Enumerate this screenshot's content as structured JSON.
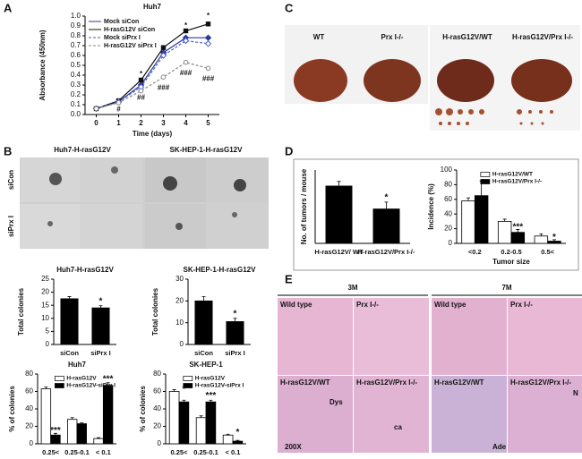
{
  "panel_labels": [
    "A",
    "B",
    "C",
    "D",
    "E"
  ],
  "panel_b": {
    "headers": [
      "Huh7-H-rasG12V",
      "SK-HEP-1-H-rasG12V"
    ],
    "rows": [
      "siCon",
      "siPrx I"
    ]
  },
  "panel_c": {
    "labels": [
      "WT",
      "Prx I-/-",
      "H-rasG12V/WT",
      "H-rasG12V/Prx I-/-"
    ]
  },
  "panel_e": {
    "headers": [
      "3M",
      "7M"
    ],
    "tiles": [
      "Wild type",
      "Prx I-/-",
      "Wild type",
      "Prx I-/-",
      "H-rasG12V/WT",
      "H-rasG12V/Prx I-/-",
      "H-rasG12V/WT",
      "H-rasG12V/Prx I-/-"
    ],
    "notes": [
      "Dys",
      "200X",
      "ca",
      "Ade",
      "N"
    ]
  },
  "chart_data": [
    {
      "type": "line",
      "title": "Huh7",
      "xlabel": "Time (days)",
      "ylabel": "Absorbance (450nm)",
      "x": [
        0,
        1,
        2,
        3,
        4,
        5
      ],
      "xlim": [
        -0.5,
        5.5
      ],
      "xticks": [
        0,
        1,
        2,
        3,
        4,
        5
      ],
      "ylim": [
        0,
        1
      ],
      "yticks": [
        {
          "value": 0,
          "label": "0.0"
        },
        0.1,
        0.2,
        0.3,
        0.4,
        0.5,
        0.6,
        0.7,
        0.8,
        0.9,
        {
          "value": 1,
          "label": "1.0"
        }
      ],
      "series": [
        {
          "name": "Mock siCon",
          "color": "#2b3a9a",
          "dash": false,
          "marker": "diamond",
          "filled": true,
          "values": [
            0.06,
            0.13,
            0.3,
            0.63,
            0.78,
            0.78
          ]
        },
        {
          "name": "H-rasG12V siCon",
          "color": "#111111",
          "dash": false,
          "marker": "square",
          "filled": true,
          "values": [
            0.06,
            0.14,
            0.35,
            0.68,
            0.85,
            0.92
          ]
        },
        {
          "name": "Mock siPrx I",
          "color": "#4a5ad0",
          "dash": true,
          "marker": "diamond",
          "filled": false,
          "values": [
            0.06,
            0.13,
            0.28,
            0.6,
            0.75,
            0.72
          ]
        },
        {
          "name": "H-rasG12V siPrx I",
          "color": "#888888",
          "dash": true,
          "marker": "circle",
          "filled": false,
          "values": [
            0.06,
            0.12,
            0.24,
            0.38,
            0.53,
            0.47
          ]
        }
      ],
      "annotations": [
        {
          "text": "*",
          "x": 2,
          "y": 0.41
        },
        {
          "text": "*",
          "x": 4,
          "y": 0.9
        },
        {
          "text": "*",
          "x": 5,
          "y": 1.0
        },
        {
          "text": "#",
          "x": 1,
          "y": 0.05
        },
        {
          "text": "##",
          "x": 2,
          "y": 0.17
        },
        {
          "text": "###",
          "x": 3,
          "y": 0.27
        },
        {
          "text": "###",
          "x": 4,
          "y": 0.42
        },
        {
          "text": "###",
          "x": 5,
          "y": 0.36
        }
      ]
    },
    {
      "type": "bar",
      "title": "Huh7-H-rasG12V",
      "ylabel": "Total colonies",
      "categories": [
        "siCon",
        "siPrx I"
      ],
      "values": [
        17.5,
        14
      ],
      "errors": [
        0.8,
        0.8
      ],
      "color": "#000000",
      "ylim": [
        0,
        25
      ],
      "yticks": [
        0,
        5,
        10,
        15,
        20,
        25
      ],
      "annotations": [
        {
          "text": "*",
          "x": "siPrx I",
          "y": 16.5
        }
      ]
    },
    {
      "type": "bar",
      "title": "SK-HEP-1-H-rasG12V",
      "ylabel": "Total colonies",
      "categories": [
        "siCon",
        "siPrx I"
      ],
      "values": [
        20,
        10.5
      ],
      "errors": [
        2,
        1.5
      ],
      "color": "#000000",
      "ylim": [
        0,
        30
      ],
      "yticks": [
        0,
        10,
        20,
        30
      ],
      "annotations": [
        {
          "text": "*",
          "x": "siPrx I",
          "y": 14
        }
      ]
    },
    {
      "type": "bar",
      "title": "Huh7",
      "ylabel": "% of colonies",
      "categories": [
        "0.25<",
        "0.25-0.1",
        "< 0.1"
      ],
      "series": [
        {
          "name": "H-rasG12V",
          "color": "#ffffff",
          "values": [
            63,
            28,
            6
          ],
          "errors": [
            2,
            2,
            1
          ]
        },
        {
          "name": "H-rasG12V-siPrx I",
          "color": "#000000",
          "values": [
            10,
            23,
            67
          ],
          "errors": [
            2,
            1,
            3
          ]
        }
      ],
      "ylim": [
        0,
        80
      ],
      "yticks": [
        0,
        20,
        40,
        60,
        80
      ],
      "annotations": [
        {
          "text": "***",
          "x": "0.25<",
          "y": 15
        },
        {
          "text": "***",
          "x": "< 0.1",
          "y": 74
        }
      ]
    },
    {
      "type": "bar",
      "title": "SK-HEP-1",
      "ylabel": "% of colonies",
      "categories": [
        "0.25<",
        "0.25-0.1",
        "< 0.1"
      ],
      "series": [
        {
          "name": "H-rasG12V",
          "color": "#ffffff",
          "values": [
            60,
            30,
            10
          ],
          "errors": [
            2,
            2,
            1
          ]
        },
        {
          "name": "H-rasG12V-siPrx I",
          "color": "#000000",
          "values": [
            48,
            48,
            3
          ],
          "errors": [
            2,
            2,
            1
          ]
        }
      ],
      "ylim": [
        0,
        80
      ],
      "yticks": [
        0,
        20,
        40,
        60,
        80
      ],
      "annotations": [
        {
          "text": "*",
          "x": "0.25<",
          "y": 62
        },
        {
          "text": "***",
          "x": "0.25-0.1",
          "y": 55
        },
        {
          "text": "*",
          "x": "< 0.1",
          "y": 13
        }
      ]
    },
    {
      "type": "bar",
      "ylabel": "No. of tumors / mouse",
      "categories": [
        "H-rasG12V/ WT",
        "H-rasG12V/Prx I-/-"
      ],
      "values": [
        12.5,
        7.5
      ],
      "errors": [
        1,
        1.5
      ],
      "color": "#000000",
      "ylim": [
        0,
        16
      ],
      "annotations": [
        {
          "text": "*",
          "x": "H-rasG12V/Prx I-/-",
          "y": 10
        }
      ]
    },
    {
      "type": "bar",
      "ylabel": "Incidence (%)",
      "xlabel": "Tumor size",
      "categories": [
        "<0.2",
        "0.2-0.5",
        "0.5<"
      ],
      "series": [
        {
          "name": "H-rasG12V/WT",
          "color": "#ffffff",
          "values": [
            58,
            30,
            10
          ],
          "errors": [
            4,
            3,
            3
          ]
        },
        {
          "name": "H-rasG12V/Prx I-/-",
          "color": "#000000",
          "values": [
            65,
            15,
            3
          ],
          "errors": [
            20,
            4,
            2
          ]
        }
      ],
      "ylim": [
        0,
        100
      ],
      "yticks": [
        0,
        20,
        40,
        60,
        80,
        100
      ],
      "annotations": [
        {
          "text": "***",
          "x": "0.2-0.5",
          "y": 22
        },
        {
          "text": "*",
          "x": "0.5<",
          "y": 8
        }
      ]
    }
  ]
}
